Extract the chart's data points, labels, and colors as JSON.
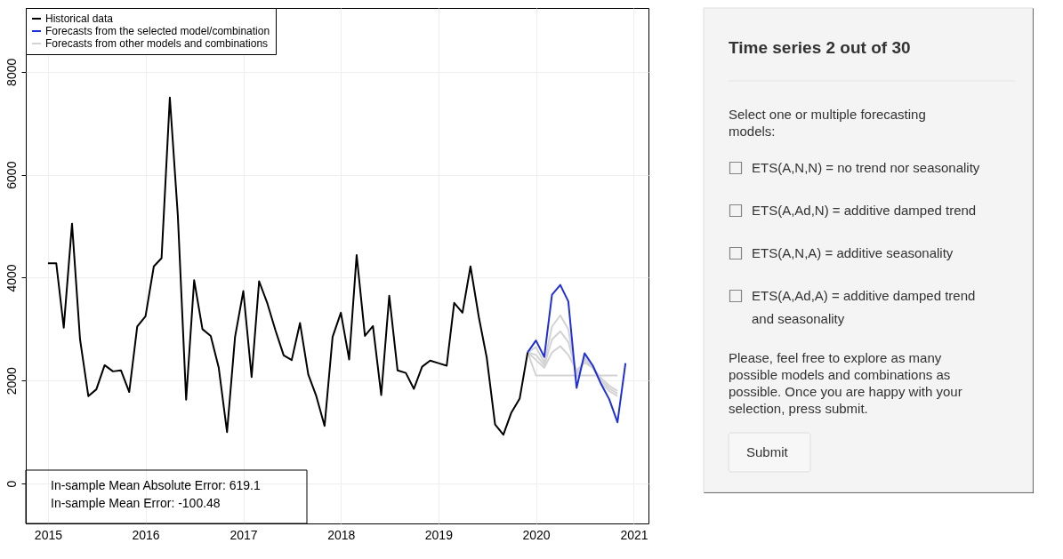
{
  "chart_data": [
    {
      "type": "line",
      "x": [
        "2015-01",
        "2015-02",
        "2015-03",
        "2015-04",
        "2015-05",
        "2015-06",
        "2015-07",
        "2015-08",
        "2015-09",
        "2015-10",
        "2015-11",
        "2015-12",
        "2016-01",
        "2016-02",
        "2016-03",
        "2016-04",
        "2016-05",
        "2016-06",
        "2016-07",
        "2016-08",
        "2016-09",
        "2016-10",
        "2016-11",
        "2016-12",
        "2017-01",
        "2017-02",
        "2017-03",
        "2017-04",
        "2017-05",
        "2017-06",
        "2017-07",
        "2017-08",
        "2017-09",
        "2017-10",
        "2017-11",
        "2017-12",
        "2018-01",
        "2018-02",
        "2018-03",
        "2018-04",
        "2018-05",
        "2018-06",
        "2018-07",
        "2018-08",
        "2018-09",
        "2018-10",
        "2018-11",
        "2018-12",
        "2019-01",
        "2019-02",
        "2019-03",
        "2019-04",
        "2019-05",
        "2019-06",
        "2019-07",
        "2019-08",
        "2019-09",
        "2019-10",
        "2019-11",
        "2019-12"
      ],
      "series": [
        {
          "name": "Historical data",
          "color": "#000000",
          "values": [
            4280,
            4280,
            3030,
            5050,
            2800,
            1700,
            1830,
            2300,
            2180,
            2200,
            1780,
            3050,
            3250,
            4220,
            4380,
            7500,
            5200,
            1630,
            3950,
            3000,
            2870,
            2250,
            1000,
            2850,
            3740,
            2070,
            3930,
            3500,
            2980,
            2490,
            2400,
            3120,
            2120,
            1700,
            1120,
            2850,
            3320,
            2410,
            4440,
            2870,
            3060,
            1720,
            3650,
            2200,
            2150,
            1840,
            2270,
            2390,
            2340,
            2290,
            3510,
            3320,
            4220,
            3240,
            2440,
            1150,
            950,
            1380,
            1650,
            2550
          ]
        },
        {
          "name": "Forecasts from the selected model/combination",
          "color": "#2030d8",
          "x": [
            "2019-12",
            "2020-01",
            "2020-02",
            "2020-03",
            "2020-04",
            "2020-05",
            "2020-06",
            "2020-07",
            "2020-08",
            "2020-09",
            "2020-10",
            "2020-11",
            "2020-12"
          ],
          "values": [
            2550,
            2780,
            2460,
            3670,
            3860,
            3540,
            1860,
            2530,
            2290,
            1930,
            1640,
            1190,
            2340
          ]
        },
        {
          "name": "Forecasts from other models and combinations",
          "color": "#d3d3d3",
          "x": [
            "2019-12",
            "2020-01",
            "2020-02",
            "2020-03",
            "2020-04",
            "2020-05",
            "2020-06",
            "2020-07",
            "2020-08",
            "2020-09",
            "2020-10",
            "2020-11"
          ],
          "values": [
            2550,
            2100,
            2100,
            2100,
            2100,
            2100,
            2100,
            2100,
            2100,
            2100,
            2100,
            2100
          ]
        },
        {
          "color": "#d3d3d3",
          "x": [
            "2019-12",
            "2020-01",
            "2020-02",
            "2020-03",
            "2020-04",
            "2020-05",
            "2020-06",
            "2020-07",
            "2020-08",
            "2020-09",
            "2020-10",
            "2020-11"
          ],
          "values": [
            2550,
            2650,
            2350,
            3050,
            3270,
            3000,
            2050,
            2450,
            2250,
            1950,
            1800,
            1700
          ]
        },
        {
          "color": "#d3d3d3",
          "x": [
            "2019-12",
            "2020-01",
            "2020-02",
            "2020-03",
            "2020-04",
            "2020-05",
            "2020-06",
            "2020-07",
            "2020-08",
            "2020-09",
            "2020-10",
            "2020-11"
          ],
          "values": [
            2550,
            2500,
            2300,
            2800,
            2960,
            2750,
            2150,
            2400,
            2250,
            2000,
            1850,
            1750
          ]
        },
        {
          "color": "#d3d3d3",
          "x": [
            "2019-12",
            "2020-01",
            "2020-02",
            "2020-03",
            "2020-04",
            "2020-05",
            "2020-06",
            "2020-07",
            "2020-08",
            "2020-09",
            "2020-10",
            "2020-11"
          ],
          "values": [
            2550,
            2400,
            2250,
            2550,
            2670,
            2500,
            2200,
            2350,
            2250,
            2050,
            1900,
            1800
          ]
        }
      ],
      "xlim": [
        "2014-10-10",
        "2021-02-25"
      ],
      "xticks": [
        "2015",
        "2016",
        "2017",
        "2018",
        "2019",
        "2020",
        "2021"
      ],
      "ylim": [
        -775,
        9240
      ],
      "yticks": [
        0,
        2000,
        4000,
        6000,
        8000
      ],
      "grid": true,
      "legend": "top left",
      "line_style": "solid",
      "marker": "none",
      "annotations": [
        "In-sample Mean Absolute Error: 619.1",
        "In-sample Mean Error: -100.48"
      ]
    },
    {
      "type": "other",
      "title": "Time series 2 out of 30",
      "annotations": [
        "Select one or multiple forecasting models:",
        "ETS(A,N,N) = no trend nor seasonality",
        "ETS(A,Ad,N) = additive damped trend",
        "ETS(A,N,A) = additive seasonality",
        "ETS(A,Ad,A) = additive damped trend and seasonality",
        "Please, feel free to explore as many possible models and combinations as possible. Once you are happy with your selection, press submit.",
        "Submit"
      ]
    }
  ]
}
